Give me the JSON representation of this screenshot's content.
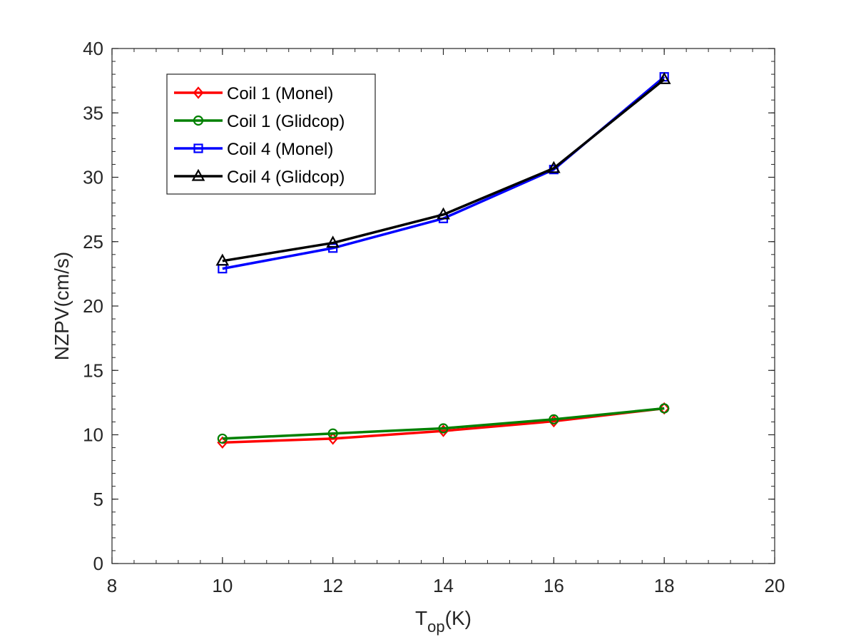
{
  "chart_data": {
    "type": "line",
    "title": "",
    "xlabel": "T",
    "xlabel_subscript": "op",
    "xlabel_suffix": "(K)",
    "ylabel": "NZPV(cm/s)",
    "xlim": [
      8,
      20
    ],
    "ylim": [
      0,
      40
    ],
    "xticks": [
      8,
      10,
      12,
      14,
      16,
      18,
      20
    ],
    "yticks": [
      0,
      5,
      10,
      15,
      20,
      25,
      30,
      35,
      40
    ],
    "legend_position": "top-left",
    "x": [
      10,
      12,
      14,
      16,
      18
    ],
    "series": [
      {
        "name": "Coil 1 (Monel)",
        "color": "#ff0000",
        "marker": "diamond",
        "values": [
          9.4,
          9.7,
          10.3,
          11.05,
          12.05
        ]
      },
      {
        "name": "Coil 1 (Glidcop)",
        "color": "#008000",
        "marker": "circle",
        "values": [
          9.7,
          10.1,
          10.5,
          11.2,
          12.05
        ]
      },
      {
        "name": "Coil 4 (Monel)",
        "color": "#0000ff",
        "marker": "square",
        "values": [
          22.9,
          24.5,
          26.8,
          30.6,
          37.8
        ]
      },
      {
        "name": "Coil 4 (Glidcop)",
        "color": "#000000",
        "marker": "triangle",
        "values": [
          23.5,
          24.9,
          27.1,
          30.7,
          37.6
        ]
      }
    ]
  }
}
